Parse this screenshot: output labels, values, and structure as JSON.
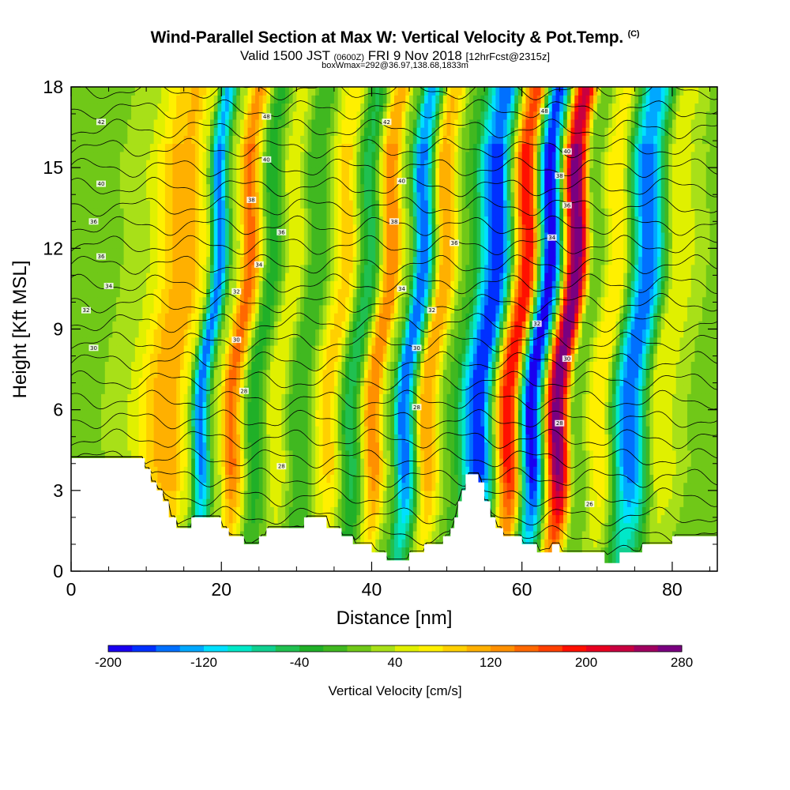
{
  "title": {
    "main": "Wind-Parallel Section at Max W: Vertical Velocity & Pot.Temp.",
    "copyright": "(C)",
    "valid_prefix": "Valid 1500 JST",
    "valid_utc": "(0600Z)",
    "valid_date": "FRI 9 Nov 2018",
    "forecast": "[12hrFcst@2315z]",
    "box_info": "boxWmax=292@36.97,138.68,1833m"
  },
  "chart_data": {
    "type": "heatmap",
    "xlabel": "Distance [nm]",
    "ylabel": "Height [Kft MSL]",
    "xlim": [
      0,
      86
    ],
    "ylim": [
      0,
      18
    ],
    "x_ticks": [
      0,
      20,
      40,
      60,
      80
    ],
    "y_ticks": [
      0,
      3,
      6,
      9,
      12,
      15,
      18
    ],
    "colorbar": {
      "title": "Vertical Velocity [cm/s]",
      "ticks": [
        "-200",
        "-120",
        "-40",
        "40",
        "120",
        "200",
        "280"
      ],
      "levels": [
        -200,
        -180,
        -160,
        -140,
        -120,
        -100,
        -80,
        -60,
        -40,
        -20,
        0,
        20,
        40,
        60,
        80,
        100,
        120,
        140,
        160,
        180,
        200,
        220,
        240,
        260,
        280
      ],
      "colors": [
        "#1a00f0",
        "#0030ff",
        "#0070ff",
        "#00a8ff",
        "#00e0ff",
        "#00e8c8",
        "#10d090",
        "#20c050",
        "#20b028",
        "#40b820",
        "#70c818",
        "#a8e018",
        "#e0f000",
        "#fff000",
        "#ffd000",
        "#ffb000",
        "#ff9000",
        "#ff6800",
        "#ff4000",
        "#ff1000",
        "#e80020",
        "#c80040",
        "#a00060",
        "#7a0080"
      ]
    },
    "vertical_velocity_bands": [
      {
        "x": 1,
        "w": 10
      },
      {
        "x": 5,
        "w": 30
      },
      {
        "x": 12,
        "w": 120
      },
      {
        "x": 14,
        "w": 60
      },
      {
        "x": 16,
        "w": -150
      },
      {
        "x": 18,
        "w": 30
      },
      {
        "x": 20,
        "w": 150
      },
      {
        "x": 23,
        "w": -30
      },
      {
        "x": 26,
        "w": 60
      },
      {
        "x": 29,
        "w": -20
      },
      {
        "x": 33,
        "w": 90
      },
      {
        "x": 36,
        "w": -50
      },
      {
        "x": 39,
        "w": 140
      },
      {
        "x": 41,
        "w": 20
      },
      {
        "x": 43,
        "w": -160
      },
      {
        "x": 46,
        "w": 120
      },
      {
        "x": 49,
        "w": 0
      },
      {
        "x": 53,
        "w": -180
      },
      {
        "x": 57,
        "w": 200
      },
      {
        "x": 60,
        "w": -200
      },
      {
        "x": 63.5,
        "w": 280
      },
      {
        "x": 66,
        "w": 0
      },
      {
        "x": 69,
        "w": 80
      },
      {
        "x": 73,
        "w": -160
      },
      {
        "x": 77,
        "w": 60
      },
      {
        "x": 81,
        "w": 20
      },
      {
        "x": 85,
        "w": 10
      }
    ],
    "theta_contour_labels": [
      {
        "x": 4,
        "y": 16.7,
        "label": "42"
      },
      {
        "x": 26,
        "y": 16.9,
        "label": "48"
      },
      {
        "x": 42,
        "y": 16.7,
        "label": "42"
      },
      {
        "x": 63,
        "y": 17.1,
        "label": "48"
      },
      {
        "x": 66,
        "y": 15.6,
        "label": "40"
      },
      {
        "x": 4,
        "y": 14.4,
        "label": "40"
      },
      {
        "x": 26,
        "y": 15.3,
        "label": "40"
      },
      {
        "x": 44,
        "y": 14.5,
        "label": "40"
      },
      {
        "x": 65,
        "y": 14.7,
        "label": "38"
      },
      {
        "x": 24,
        "y": 13.8,
        "label": "38"
      },
      {
        "x": 3,
        "y": 13.0,
        "label": "36"
      },
      {
        "x": 43,
        "y": 13.0,
        "label": "38"
      },
      {
        "x": 66,
        "y": 13.6,
        "label": "36"
      },
      {
        "x": 28,
        "y": 12.6,
        "label": "36"
      },
      {
        "x": 51,
        "y": 12.2,
        "label": "36"
      },
      {
        "x": 4,
        "y": 11.7,
        "label": "36"
      },
      {
        "x": 64,
        "y": 12.4,
        "label": "34"
      },
      {
        "x": 25,
        "y": 11.4,
        "label": "34"
      },
      {
        "x": 5,
        "y": 10.6,
        "label": "34"
      },
      {
        "x": 44,
        "y": 10.5,
        "label": "34"
      },
      {
        "x": 22,
        "y": 10.4,
        "label": "32"
      },
      {
        "x": 2,
        "y": 9.7,
        "label": "32"
      },
      {
        "x": 48,
        "y": 9.7,
        "label": "32"
      },
      {
        "x": 62,
        "y": 9.2,
        "label": "32"
      },
      {
        "x": 22,
        "y": 8.6,
        "label": "30"
      },
      {
        "x": 3,
        "y": 8.3,
        "label": "30"
      },
      {
        "x": 46,
        "y": 8.3,
        "label": "30"
      },
      {
        "x": 66,
        "y": 7.9,
        "label": "30"
      },
      {
        "x": 23,
        "y": 6.7,
        "label": "28"
      },
      {
        "x": 46,
        "y": 6.1,
        "label": "28"
      },
      {
        "x": 65,
        "y": 5.5,
        "label": "28"
      },
      {
        "x": 28,
        "y": 3.9,
        "label": "28"
      },
      {
        "x": 69,
        "y": 2.5,
        "label": "26"
      }
    ],
    "terrain_height": [
      [
        0,
        4.2
      ],
      [
        9.8,
        4.2
      ],
      [
        9.8,
        3.8
      ],
      [
        10.6,
        3.8
      ],
      [
        10.6,
        3.3
      ],
      [
        11.4,
        3.3
      ],
      [
        11.4,
        3.0
      ],
      [
        12.2,
        3.0
      ],
      [
        12.2,
        2.6
      ],
      [
        13.0,
        2.6
      ],
      [
        13.0,
        2.0
      ],
      [
        14.0,
        2.0
      ],
      [
        14.0,
        1.6
      ],
      [
        16.0,
        1.6
      ],
      [
        16.0,
        2.0
      ],
      [
        20.0,
        2.0
      ],
      [
        20.0,
        1.6
      ],
      [
        21.0,
        1.6
      ],
      [
        21.0,
        1.3
      ],
      [
        23.0,
        1.3
      ],
      [
        23.0,
        1.0
      ],
      [
        25.0,
        1.0
      ],
      [
        25.0,
        1.3
      ],
      [
        26.0,
        1.3
      ],
      [
        26.0,
        1.6
      ],
      [
        31.0,
        1.6
      ],
      [
        31.0,
        2.0
      ],
      [
        34.0,
        2.0
      ],
      [
        34.0,
        1.6
      ],
      [
        36.0,
        1.6
      ],
      [
        36.0,
        1.3
      ],
      [
        37.5,
        1.3
      ],
      [
        37.5,
        1.0
      ],
      [
        40.0,
        1.0
      ],
      [
        40.0,
        0.7
      ],
      [
        42.0,
        0.7
      ],
      [
        42.0,
        0.4
      ],
      [
        45.0,
        0.4
      ],
      [
        45.0,
        0.7
      ],
      [
        47.0,
        0.7
      ],
      [
        47.0,
        1.0
      ],
      [
        49.5,
        1.0
      ],
      [
        49.5,
        1.3
      ],
      [
        50.5,
        1.3
      ],
      [
        50.5,
        1.6
      ],
      [
        51.0,
        1.6
      ],
      [
        51.0,
        2.0
      ],
      [
        51.5,
        2.0
      ],
      [
        51.5,
        2.6
      ],
      [
        52.0,
        2.6
      ],
      [
        52.0,
        3.0
      ],
      [
        52.5,
        3.0
      ],
      [
        52.5,
        3.6
      ],
      [
        54.2,
        3.6
      ],
      [
        54.2,
        3.3
      ],
      [
        55.0,
        3.3
      ],
      [
        55.0,
        2.6
      ],
      [
        55.8,
        2.6
      ],
      [
        55.8,
        2.0
      ],
      [
        56.5,
        2.0
      ],
      [
        56.5,
        1.6
      ],
      [
        57.5,
        1.6
      ],
      [
        57.5,
        1.3
      ],
      [
        60.0,
        1.3
      ],
      [
        60.0,
        1.0
      ],
      [
        62.0,
        1.0
      ],
      [
        62.0,
        0.7
      ],
      [
        64.0,
        0.7
      ],
      [
        64.0,
        1.0
      ],
      [
        65.0,
        1.0
      ],
      [
        65.0,
        0.7
      ],
      [
        71.0,
        0.7
      ],
      [
        71.0,
        0.3
      ],
      [
        73.0,
        0.3
      ],
      [
        73.0,
        0.7
      ],
      [
        76.0,
        0.7
      ],
      [
        76.0,
        1.0
      ],
      [
        80.0,
        1.0
      ],
      [
        80.0,
        1.3
      ],
      [
        86.0,
        1.3
      ]
    ]
  }
}
